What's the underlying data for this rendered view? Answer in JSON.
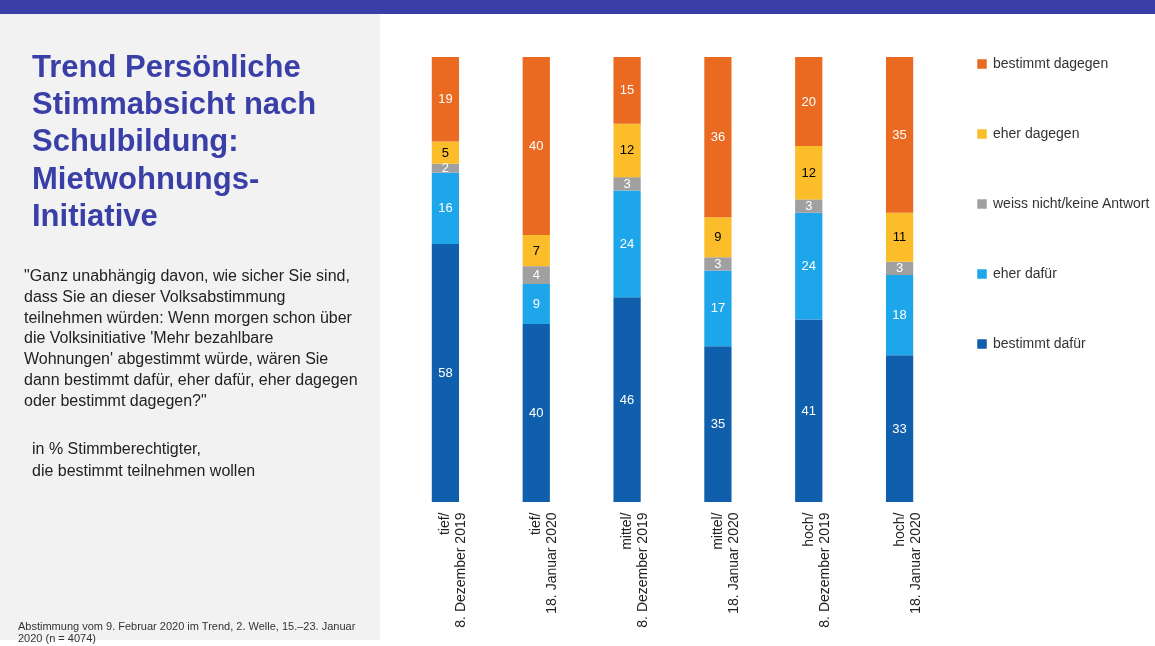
{
  "chart_data": {
    "type": "bar",
    "stacked": true,
    "data_labels": true,
    "legend": "right",
    "title": "Trend Persönliche Stimmabsicht nach Schulbildung: Mietwohnungs-Initiative",
    "subtitle": "\"Ganz unabhängig davon, wie sicher Sie sind, dass Sie an dieser Volksabstimmung teilnehmen würden: Wenn morgen schon über die Volksinitiative 'Mehr bezahlbare Wohnungen' abgestimmt würde, wären Sie dann bestimmt dafür, eher dafür, eher dagegen oder bestimmt dagegen?\"",
    "annotations": [
      "in % Stimmberechtigter,\ndie bestimmt teilnehmen wollen",
      "Abstimmung vom 9. Februar 2020 im Trend, 2. Welle, 15.–23. Januar 2020 (n = 4074)"
    ],
    "categories": [
      "tief/\n8. Dezember 2019",
      "tief/\n18. Januar 2020",
      "mittel/\n8. Dezember 2019",
      "mittel/\n18. Januar 2020",
      "hoch/\n8. Dezember 2019",
      "hoch/\n18. Januar 2020"
    ],
    "series": [
      {
        "name": "bestimmt dafür",
        "color": "#0f5fad",
        "values": [
          58,
          40,
          46,
          35,
          41,
          33
        ]
      },
      {
        "name": "eher dafür",
        "color": "#1ea6ea",
        "values": [
          16,
          9,
          24,
          17,
          24,
          18
        ]
      },
      {
        "name": "weiss nicht/keine Antwort",
        "color": "#a0a0a0",
        "values": [
          2,
          4,
          3,
          3,
          3,
          3
        ]
      },
      {
        "name": "eher dagegen",
        "color": "#fbbd2a",
        "values": [
          5,
          7,
          12,
          9,
          12,
          11
        ]
      },
      {
        "name": "bestimmt dagegen",
        "color": "#ea6a22",
        "values": [
          19,
          40,
          15,
          36,
          20,
          35
        ]
      }
    ]
  }
}
